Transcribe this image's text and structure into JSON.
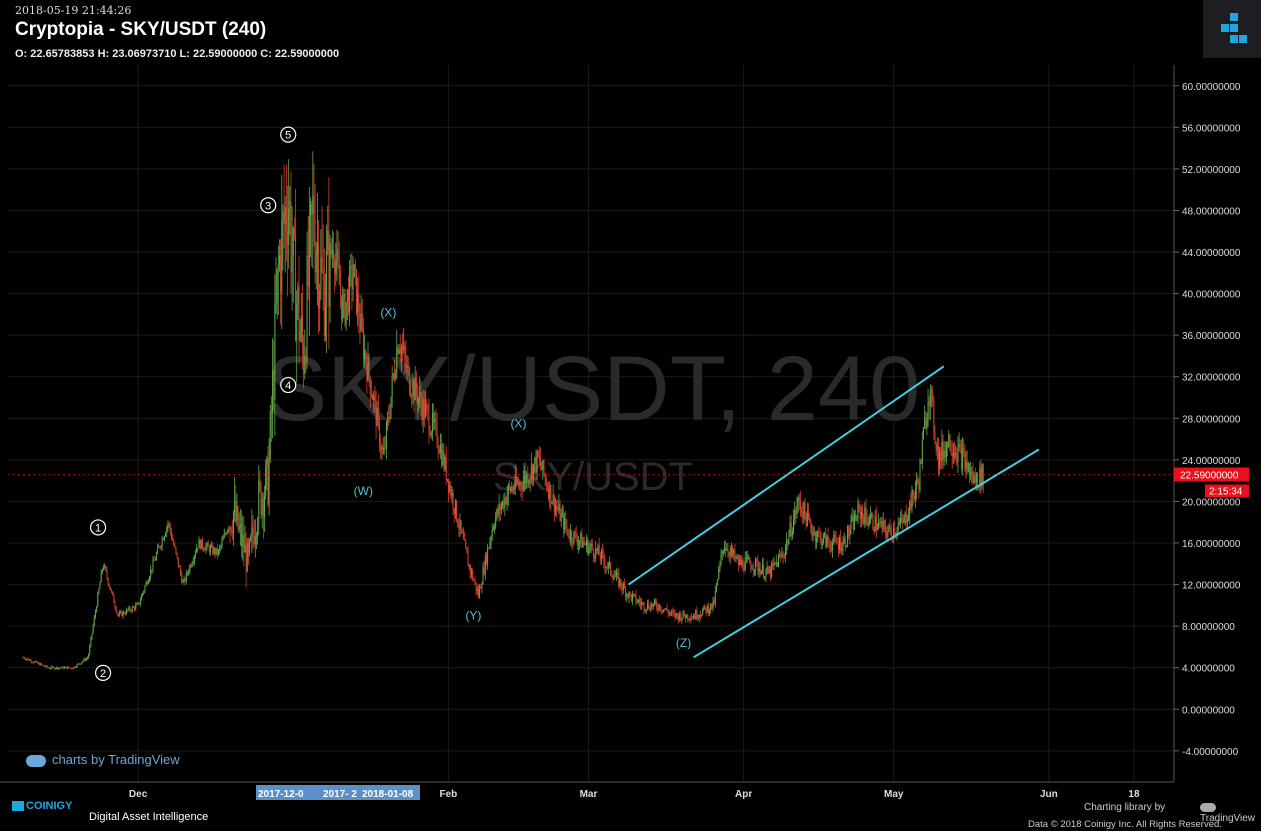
{
  "header": {
    "timestamp": "2018-05-19 21:44:26",
    "title": "Cryptopia - SKY/USDT (240)",
    "ohlc": "O: 22.65783853 H: 23.06973710 L: 22.59000000 C: 22.59000000"
  },
  "watermark": {
    "main": "SKY/USDT, 240",
    "sub": "SKY/USDT"
  },
  "price_label": "22.59000000",
  "countdown_label": "2:15:34",
  "tv_watermark": "charts by TradingView",
  "footer": {
    "brand": "COINIGY",
    "tagline": "Digital Asset Intelligence",
    "charting": "Charting library by",
    "tv": "TradingView",
    "copyright": "Data © 2018     Coinigy Inc. All Rights Reserved."
  },
  "colors": {
    "bg": "#000000",
    "up": "#5fa94a",
    "down": "#d6402c",
    "channel": "#40d0e0",
    "wave_label": "#4fc3d8",
    "price_badge": "#e8101a",
    "highlight": "#5b8fc7"
  },
  "chart_data": {
    "type": "candlestick",
    "y_ticks": [
      "60.00000000",
      "56.00000000",
      "52.00000000",
      "48.00000000",
      "44.00000000",
      "40.00000000",
      "36.00000000",
      "32.00000000",
      "28.00000000",
      "24.00000000",
      "20.00000000",
      "16.00000000",
      "12.00000000",
      "8.00000000",
      "4.00000000",
      "0.00000000",
      "-4.00000000"
    ],
    "ylim": [
      -7,
      62
    ],
    "x_ticks": [
      {
        "label": "Dec",
        "x": "2017-12-01"
      },
      {
        "label": "Feb",
        "x": "2018-02-01"
      },
      {
        "label": "Mar",
        "x": "2018-03-01"
      },
      {
        "label": "Apr",
        "x": "2018-04-01"
      },
      {
        "label": "May",
        "x": "2018-05-01"
      },
      {
        "label": "Jun",
        "x": "2018-06-01"
      },
      {
        "label": "18",
        "x": "2018-06-18"
      }
    ],
    "x_highlight_labels": [
      "2017-12-0",
      "2017- 2",
      "2018-01-08"
    ],
    "price_path": [
      [
        "2017-11-08",
        5
      ],
      [
        "2017-11-13",
        4
      ],
      [
        "2017-11-18",
        4
      ],
      [
        "2017-11-21",
        5
      ],
      [
        "2017-11-24",
        14
      ],
      [
        "2017-11-27",
        9
      ],
      [
        "2017-12-01",
        10
      ],
      [
        "2017-12-04",
        14
      ],
      [
        "2017-12-07",
        18
      ],
      [
        "2017-12-10",
        12
      ],
      [
        "2017-12-13",
        16
      ],
      [
        "2017-12-17",
        15
      ],
      [
        "2017-12-20",
        19
      ],
      [
        "2017-12-23",
        14
      ],
      [
        "2017-12-25",
        20
      ],
      [
        "2017-12-27",
        22
      ],
      [
        "2017-12-29",
        42
      ],
      [
        "2017-12-31",
        50
      ],
      [
        "2018-01-01",
        42
      ],
      [
        "2018-01-03",
        34
      ],
      [
        "2018-01-05",
        48
      ],
      [
        "2018-01-07",
        40
      ],
      [
        "2018-01-09",
        45
      ],
      [
        "2018-01-11",
        38
      ],
      [
        "2018-01-13",
        42
      ],
      [
        "2018-01-15",
        35
      ],
      [
        "2018-01-17",
        30
      ],
      [
        "2018-01-19",
        24
      ],
      [
        "2018-01-22",
        36
      ],
      [
        "2018-01-24",
        32
      ],
      [
        "2018-01-27",
        29
      ],
      [
        "2018-01-30",
        26
      ],
      [
        "2018-02-02",
        20
      ],
      [
        "2018-02-05",
        14
      ],
      [
        "2018-02-07",
        11
      ],
      [
        "2018-02-10",
        18
      ],
      [
        "2018-02-13",
        21
      ],
      [
        "2018-02-16",
        22
      ],
      [
        "2018-02-19",
        24
      ],
      [
        "2018-02-22",
        20
      ],
      [
        "2018-02-25",
        17
      ],
      [
        "2018-02-28",
        16
      ],
      [
        "2018-03-03",
        15
      ],
      [
        "2018-03-06",
        13
      ],
      [
        "2018-03-09",
        11
      ],
      [
        "2018-03-12",
        10
      ],
      [
        "2018-03-15",
        10
      ],
      [
        "2018-03-18",
        9
      ],
      [
        "2018-03-22",
        9
      ],
      [
        "2018-03-26",
        10
      ],
      [
        "2018-03-28",
        16
      ],
      [
        "2018-03-31",
        14
      ],
      [
        "2018-04-03",
        14
      ],
      [
        "2018-04-06",
        13
      ],
      [
        "2018-04-09",
        15
      ],
      [
        "2018-04-12",
        20
      ],
      [
        "2018-04-15",
        17
      ],
      [
        "2018-04-18",
        16
      ],
      [
        "2018-04-21",
        16
      ],
      [
        "2018-04-24",
        19
      ],
      [
        "2018-04-27",
        18
      ],
      [
        "2018-04-30",
        17
      ],
      [
        "2018-05-03",
        18
      ],
      [
        "2018-05-06",
        22
      ],
      [
        "2018-05-08",
        31
      ],
      [
        "2018-05-10",
        24
      ],
      [
        "2018-05-12",
        26
      ],
      [
        "2018-05-15",
        24
      ],
      [
        "2018-05-17",
        22
      ],
      [
        "2018-05-19",
        22.59
      ]
    ],
    "wave_labels": [
      {
        "text": "1",
        "circled": true,
        "x": "2017-11-23",
        "y": 17.5
      },
      {
        "text": "2",
        "circled": true,
        "x": "2017-11-24",
        "y": 3.5
      },
      {
        "text": "3",
        "circled": true,
        "x": "2017-12-27",
        "y": 48.5
      },
      {
        "text": "4",
        "circled": true,
        "x": "2017-12-31",
        "y": 31.2
      },
      {
        "text": "5",
        "circled": true,
        "x": "2017-12-31",
        "y": 55.3
      },
      {
        "text": "(X)",
        "circled": false,
        "x": "2018-01-20",
        "y": 38.2
      },
      {
        "text": "(W)",
        "circled": false,
        "x": "2018-01-15",
        "y": 21
      },
      {
        "text": "(X)",
        "circled": false,
        "x": "2018-02-15",
        "y": 27.5
      },
      {
        "text": "(Y)",
        "circled": false,
        "x": "2018-02-06",
        "y": 9
      },
      {
        "text": "(Z)",
        "circled": false,
        "x": "2018-03-20",
        "y": 6.4
      }
    ],
    "channel_lines": [
      {
        "x1": "2018-03-09",
        "y1": 12,
        "x2": "2018-05-11",
        "y2": 33
      },
      {
        "x1": "2018-03-22",
        "y1": 5,
        "x2": "2018-05-30",
        "y2": 25
      }
    ],
    "last_price": 22.59
  }
}
